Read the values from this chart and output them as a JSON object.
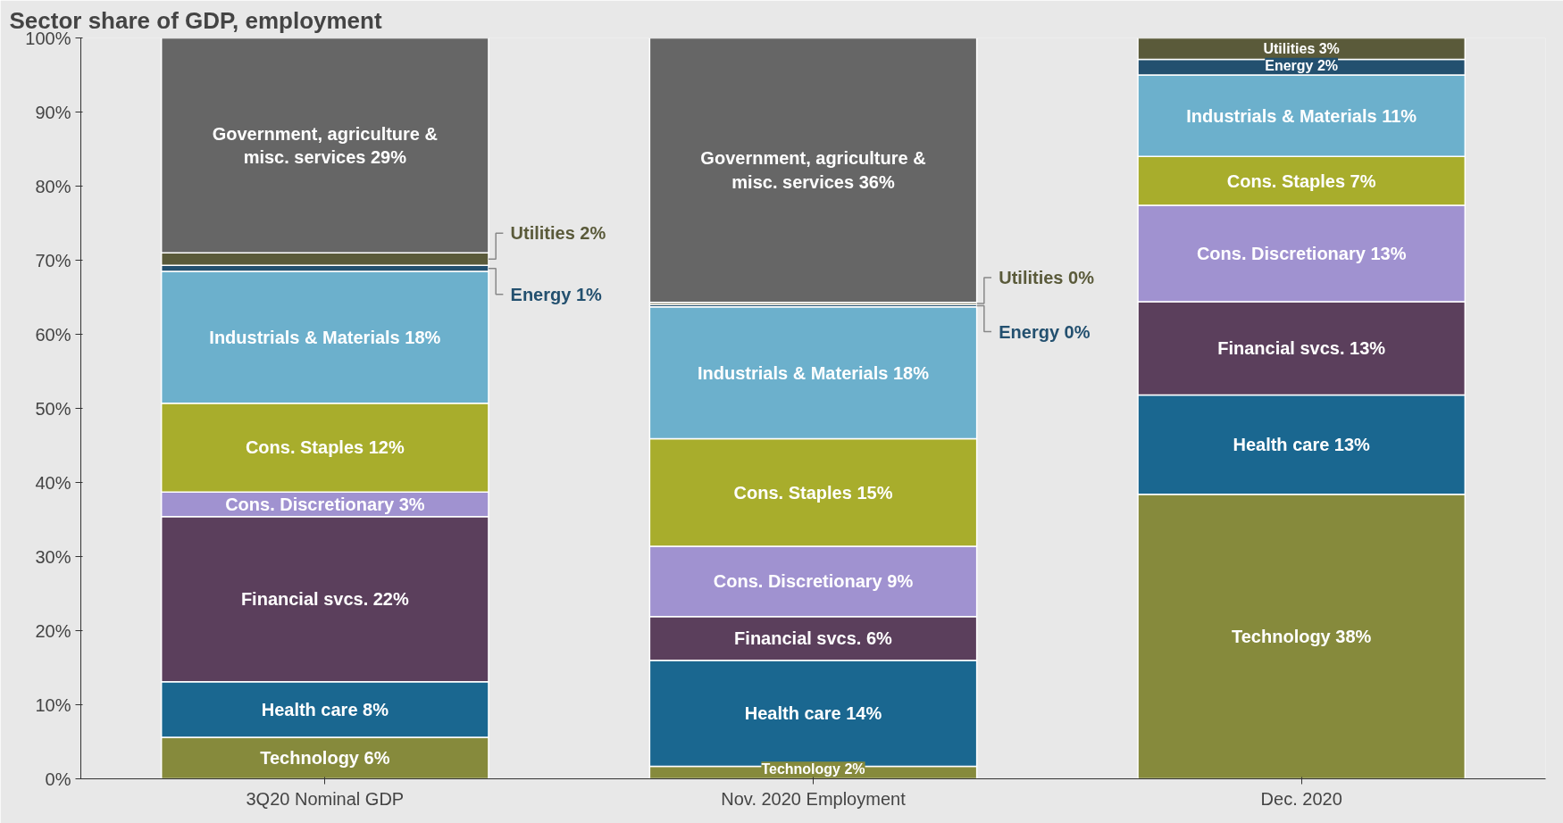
{
  "chart_data": {
    "type": "bar",
    "stacked": true,
    "title": "Sector share of GDP, employment",
    "categories": [
      "3Q20 Nominal GDP",
      "Nov. 2020 Employment",
      "Dec. 2020"
    ],
    "series": [
      {
        "color": "#868a3c",
        "values": [
          5.6,
          1.7,
          38.4
        ],
        "value_labels": [
          "Technology 6%",
          "Technology 2%",
          "Technology 38%"
        ]
      },
      {
        "color": "#1a6790",
        "values": [
          7.5,
          14.3,
          13.4
        ],
        "value_labels": [
          "Health care 8%",
          "Health care 14%",
          "Health care 13%"
        ]
      },
      {
        "color": "#5b3f5c",
        "values": [
          22.3,
          5.9,
          12.6
        ],
        "value_labels": [
          "Financial svcs. 22%",
          "Financial svcs. 6%",
          "Financial svcs. 13%"
        ]
      },
      {
        "color": "#a092d0",
        "values": [
          3.3,
          9.5,
          13.0
        ],
        "value_labels": [
          "Cons. Discretionary 3%",
          "Cons. Discretionary 9%",
          "Cons. Discretionary 13%"
        ]
      },
      {
        "color": "#a8ad2c",
        "values": [
          12.0,
          14.5,
          6.6
        ],
        "value_labels": [
          "Cons. Staples 12%",
          "Cons. Staples 15%",
          "Cons. Staples 7%"
        ]
      },
      {
        "color": "#6cb0cc",
        "values": [
          17.8,
          17.8,
          11.0
        ],
        "value_labels": [
          "Industrials & Materials 18%",
          "Industrials & Materials 18%",
          "Industrials & Materials 11%"
        ]
      },
      {
        "color": "#23506f",
        "values": [
          0.8,
          0.3,
          2.1
        ],
        "value_labels": [
          "Energy 1%",
          "Energy 0%",
          "Energy 2%"
        ]
      },
      {
        "color": "#5a5a3a",
        "values": [
          1.7,
          0.3,
          2.9
        ],
        "value_labels": [
          "Utilities 2%",
          "Utilities 0%",
          "Utilities 3%"
        ]
      },
      {
        "color": "#666666",
        "values": [
          29.0,
          35.7,
          null
        ],
        "value_labels": [
          "Government, agriculture & misc. services 29%",
          "Government, agriculture & misc. services 36%",
          null
        ]
      }
    ],
    "ylim": [
      0,
      100
    ],
    "yticks": [
      {
        "value": 0,
        "label": "0%"
      },
      {
        "value": 10,
        "label": "10%"
      },
      {
        "value": 20,
        "label": "20%"
      },
      {
        "value": 30,
        "label": "30%"
      },
      {
        "value": 40,
        "label": "40%"
      },
      {
        "value": 50,
        "label": "50%"
      },
      {
        "value": 60,
        "label": "60%"
      },
      {
        "value": 70,
        "label": "70%"
      },
      {
        "value": 80,
        "label": "80%"
      },
      {
        "value": 90,
        "label": "90%"
      },
      {
        "value": 100,
        "label": "100%"
      }
    ]
  }
}
